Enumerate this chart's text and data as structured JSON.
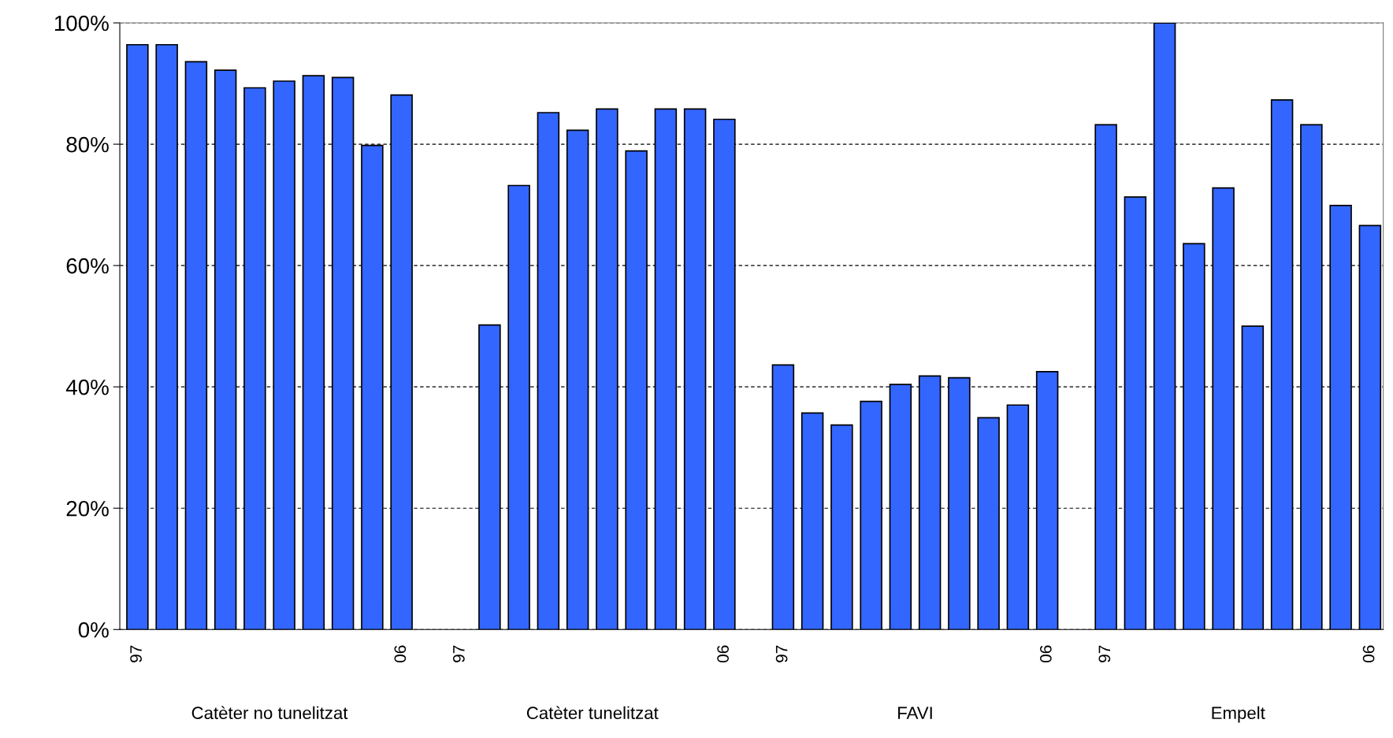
{
  "chart_data": {
    "type": "bar",
    "categories": [
      "97",
      null,
      null,
      null,
      null,
      null,
      null,
      null,
      null,
      "06",
      null,
      "97",
      null,
      null,
      null,
      null,
      null,
      null,
      null,
      null,
      "06",
      null,
      "97",
      null,
      null,
      null,
      null,
      null,
      null,
      null,
      null,
      "06",
      null,
      "97",
      null,
      null,
      null,
      null,
      null,
      null,
      null,
      null,
      "06"
    ],
    "values": [
      96.4,
      96.4,
      93.6,
      92.2,
      89.3,
      90.4,
      91.3,
      91.0,
      79.8,
      88.1,
      null,
      null,
      50.2,
      73.2,
      85.2,
      82.3,
      85.8,
      78.9,
      85.8,
      85.8,
      84.1,
      null,
      43.6,
      35.7,
      33.7,
      37.6,
      40.4,
      41.8,
      41.5,
      34.9,
      37.0,
      42.5,
      null,
      83.2,
      71.3,
      100,
      63.6,
      72.8,
      50.0,
      87.3,
      83.2,
      69.9,
      66.6
    ],
    "color": "#3366ff",
    "ylim": [
      0,
      100
    ],
    "yticks": [
      {
        "value": 0,
        "label": "0%"
      },
      {
        "value": 20,
        "label": "20%"
      },
      {
        "value": 40,
        "label": "40%"
      },
      {
        "value": 60,
        "label": "60%"
      },
      {
        "value": 80,
        "label": "80%"
      },
      {
        "value": 100,
        "label": "100%"
      }
    ],
    "grid": "y",
    "line_style": "dashed",
    "annotations": [
      "Catèter no tunelitzat",
      "Catèter tunelitzat",
      "FAVI",
      "Empelt"
    ]
  }
}
